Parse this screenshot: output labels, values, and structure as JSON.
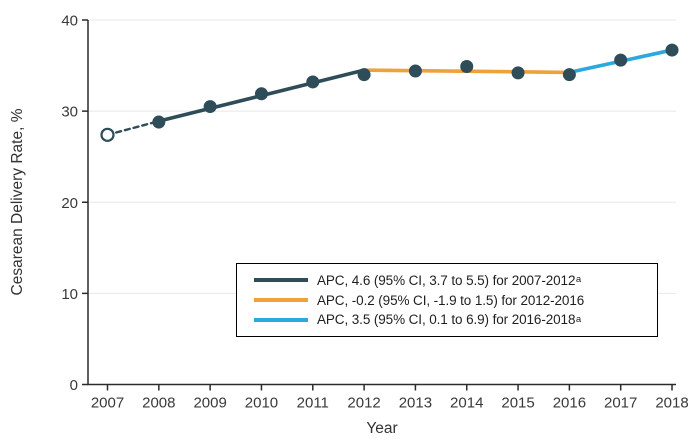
{
  "figure": {
    "background": "#ffffff",
    "axis_color": "#2b2b2b",
    "grid_color": "#e8e8e8",
    "text_color": "#3a3a3a"
  },
  "chart_data": {
    "type": "line",
    "title": "",
    "xlabel": "Year",
    "ylabel": "Cesarean Delivery Rate, %",
    "x": [
      2007,
      2008,
      2009,
      2010,
      2011,
      2012,
      2013,
      2014,
      2015,
      2016,
      2017,
      2018
    ],
    "ylim": [
      0,
      40
    ],
    "yticks": [
      0,
      10,
      20,
      30,
      40
    ],
    "grid": "horizontal light-gray lines at each y tick",
    "legend_position": "inside, lower middle-right, boxed",
    "points": {
      "marker_color": "#2E4D59",
      "values": [
        27.4,
        28.8,
        30.5,
        31.9,
        33.2,
        34.0,
        34.4,
        34.9,
        34.2,
        34.0,
        35.6,
        36.7
      ],
      "markers": [
        "open",
        "filled",
        "filled",
        "filled",
        "filled",
        "filled",
        "filled",
        "filled",
        "filled",
        "filled",
        "filled",
        "filled"
      ]
    },
    "trend_segments": [
      {
        "id": "lead-in-dashed",
        "style": "dashed",
        "color": "#2E4D59",
        "from": {
          "year": 2007,
          "value": 27.4
        },
        "to": {
          "year": 2008,
          "value": 28.9
        }
      },
      {
        "id": "apc-2007-2012",
        "style": "solid",
        "color": "#2E4D59",
        "from": {
          "year": 2008,
          "value": 28.9
        },
        "to": {
          "year": 2012,
          "value": 34.5
        }
      },
      {
        "id": "apc-2012-2016",
        "style": "solid",
        "color": "#EFA13A",
        "from": {
          "year": 2012,
          "value": 34.5
        },
        "to": {
          "year": 2016,
          "value": 34.25
        }
      },
      {
        "id": "apc-2016-2018",
        "style": "solid",
        "color": "#29A9DC",
        "from": {
          "year": 2016,
          "value": 34.25
        },
        "to": {
          "year": 2018,
          "value": 36.7
        }
      }
    ],
    "legend": {
      "entries": [
        {
          "color": "#2E4D59",
          "text": "APC, 4.6 (95% CI, 3.7 to 5.5) for 2007-2012",
          "sup": "a"
        },
        {
          "color": "#EFA13A",
          "text": "APC, -0.2 (95% CI, -1.9 to 1.5) for 2012-2016",
          "sup": ""
        },
        {
          "color": "#29A9DC",
          "text": "APC, 3.5 (95% CI, 0.1 to 6.9) for 2016-2018",
          "sup": "a"
        }
      ]
    }
  }
}
